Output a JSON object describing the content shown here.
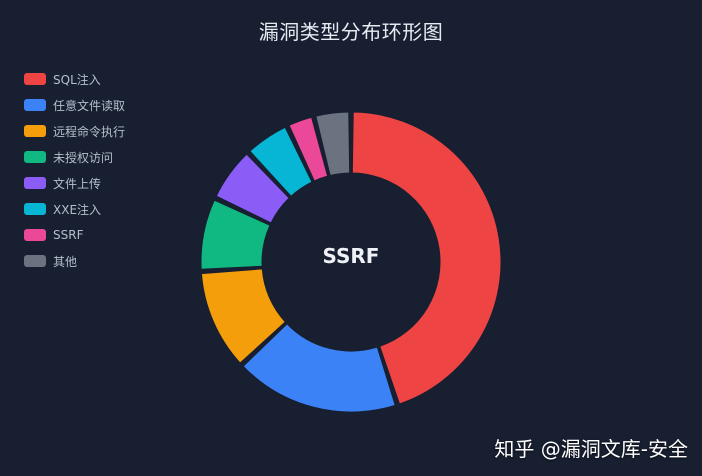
{
  "chart_data": {
    "type": "pie",
    "title": "漏洞类型分布环形图",
    "legend": [
      "SQL注入",
      "任意文件读取",
      "远程命令执行",
      "未授权访问",
      "文件上传",
      "XXE注入",
      "SSRF",
      "其他"
    ],
    "series": [
      {
        "values": [
          45,
          18,
          11,
          8,
          6,
          5,
          3,
          4
        ],
        "colors": [
          "#ef4444",
          "#3b82f6",
          "#f59e0b",
          "#10b981",
          "#8b5cf6",
          "#06b6d4",
          "#ec4899",
          "#6b7280"
        ]
      }
    ],
    "legend_position": "left",
    "center_label": "SSRF"
  },
  "watermark": "知乎 @漏洞文库-安全"
}
